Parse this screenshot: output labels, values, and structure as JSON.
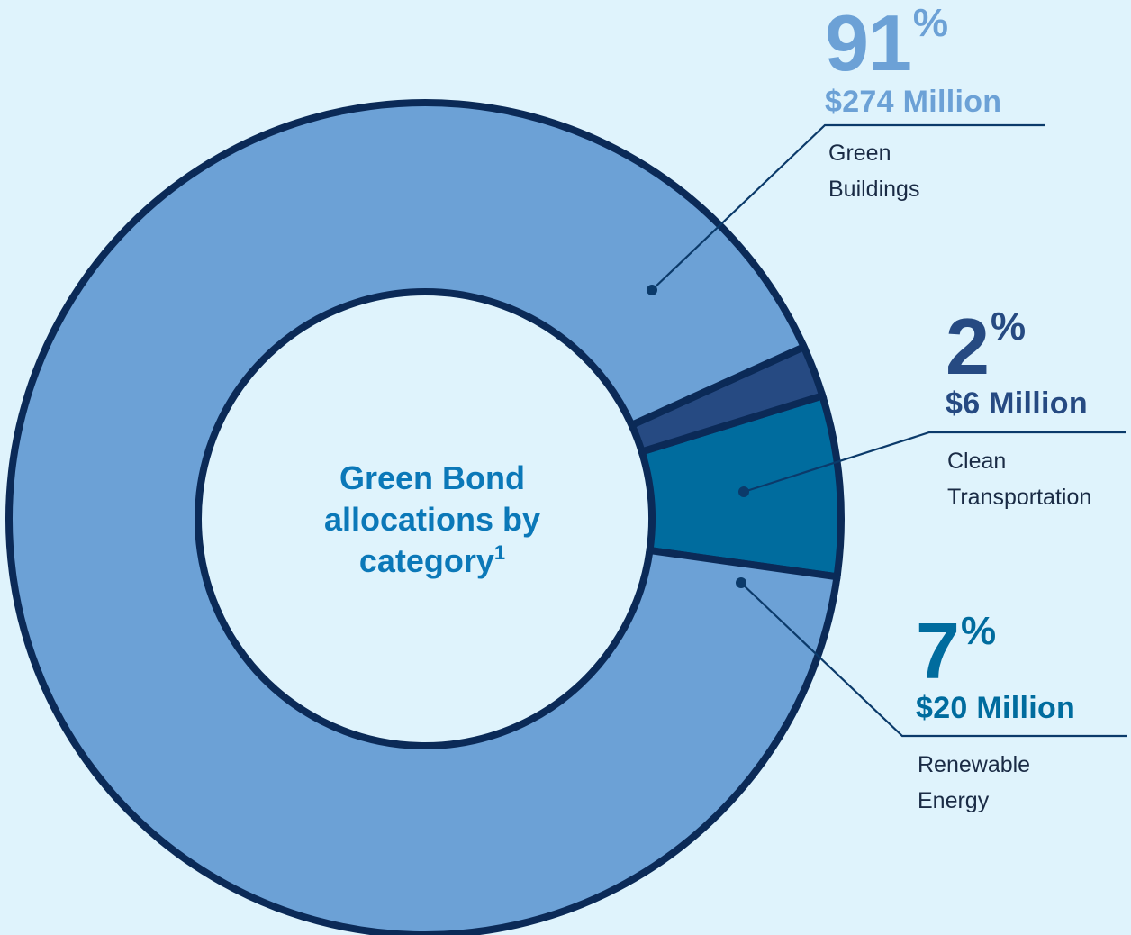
{
  "center_title": {
    "line1": "Green Bond",
    "line2": "allocations by",
    "line3": "category",
    "footnote": "1"
  },
  "colors": {
    "background": "#dff3fc",
    "outline": "#0b2a57",
    "leader": "#0b3a6a"
  },
  "chart_data": {
    "type": "pie",
    "title": "Green Bond allocations by category",
    "donut": true,
    "slices": [
      {
        "label": "Green Buildings",
        "percent": 91,
        "amount": 274,
        "unit": "$ Million",
        "color": "#6ca1d6"
      },
      {
        "label": "Clean Transportation",
        "percent": 2,
        "amount": 6,
        "unit": "$ Million",
        "color": "#264a82"
      },
      {
        "label": "Renewable Energy",
        "percent": 7,
        "amount": 20,
        "unit": "$ Million",
        "color": "#006c9e"
      }
    ]
  },
  "callouts": {
    "green_buildings": {
      "pct": "91",
      "sign": "%",
      "amount": "$274 Million",
      "line1": "Green",
      "line2": "Buildings",
      "color": "#6ca1d6"
    },
    "clean_transportation": {
      "pct": "2",
      "sign": "%",
      "amount": "$6 Million",
      "line1": "Clean",
      "line2": "Transportation",
      "color": "#264a82"
    },
    "renewable_energy": {
      "pct": "7",
      "sign": "%",
      "amount": "$20 Million",
      "line1": "Renewable",
      "line2": "Energy",
      "color": "#006c9e"
    }
  }
}
